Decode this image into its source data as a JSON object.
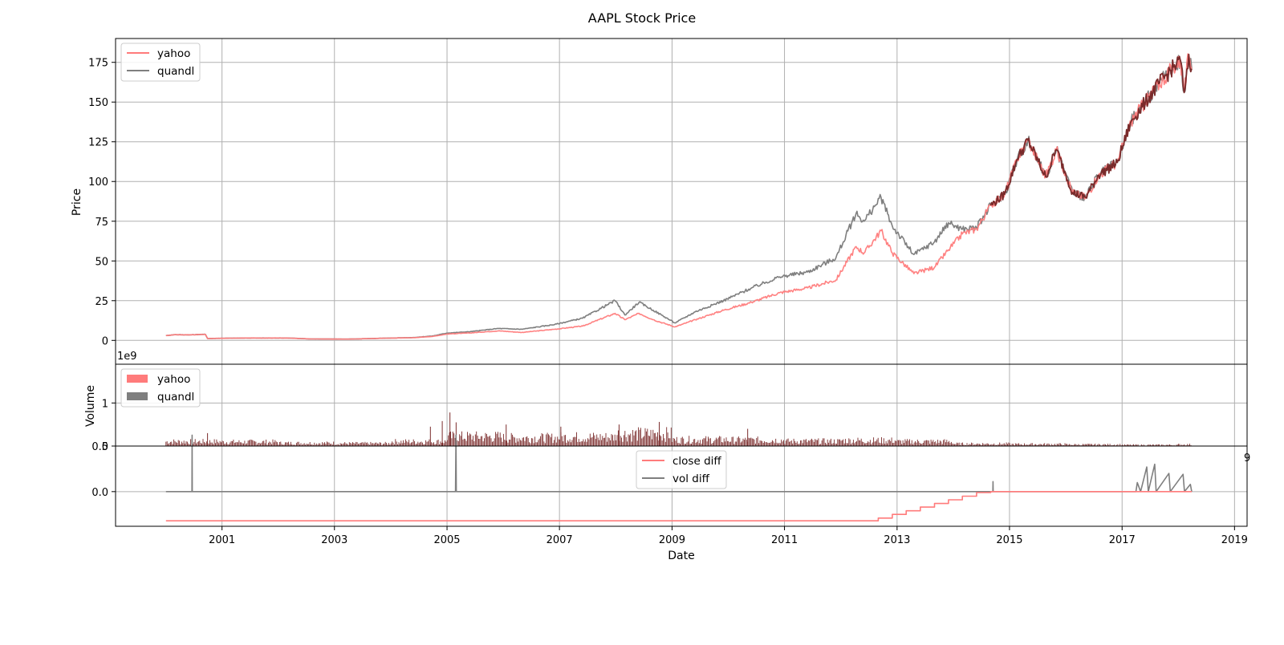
{
  "chart_data": {
    "type": "line",
    "title": "AAPL Stock Price",
    "xlabel": "Date",
    "x_ticks": [
      "2001",
      "2003",
      "2005",
      "2007",
      "2009",
      "2011",
      "2013",
      "2015",
      "2017",
      "2019"
    ],
    "colors": {
      "yahoo": "#ff7b7b",
      "quandl": "#7f7f7f",
      "overlap": "#7a2b2b",
      "grid": "#b0b0b0"
    },
    "panels": [
      {
        "id": "price",
        "type": "line",
        "ylabel": "Price",
        "ylim": [
          -15,
          190
        ],
        "yticks": [
          0,
          25,
          50,
          75,
          100,
          125,
          150,
          175
        ],
        "legend": "top-left",
        "grid": true,
        "series": [
          {
            "name": "yahoo",
            "color": "#ff7b7b",
            "points": [
              [
                "2000-01-03",
                3
              ],
              [
                "2000-03-01",
                3.6
              ],
              [
                "2000-06-01",
                3.5
              ],
              [
                "2000-09-15",
                3.8
              ],
              [
                "2000-09-29",
                1.2
              ],
              [
                "2001-06-01",
                1.5
              ],
              [
                "2002-03-01",
                1.5
              ],
              [
                "2002-08-01",
                0.9
              ],
              [
                "2003-04-01",
                0.8
              ],
              [
                "2003-12-01",
                1.4
              ],
              [
                "2004-06-01",
                1.7
              ],
              [
                "2004-10-01",
                2.5
              ],
              [
                "2005-01-01",
                4
              ],
              [
                "2005-06-01",
                4.7
              ],
              [
                "2005-12-01",
                6
              ],
              [
                "2006-05-01",
                5
              ],
              [
                "2006-12-01",
                7
              ],
              [
                "2007-06-01",
                9
              ],
              [
                "2007-12-28",
                17
              ],
              [
                "2008-03-01",
                13
              ],
              [
                "2008-06-01",
                17
              ],
              [
                "2008-09-01",
                13
              ],
              [
                "2009-01-20",
                8.5
              ],
              [
                "2009-06-01",
                13
              ],
              [
                "2009-12-01",
                19
              ],
              [
                "2010-06-01",
                24
              ],
              [
                "2010-12-01",
                30
              ],
              [
                "2011-06-01",
                33
              ],
              [
                "2011-12-01",
                38
              ],
              [
                "2012-04-10",
                59
              ],
              [
                "2012-06-01",
                55
              ],
              [
                "2012-09-19",
                69
              ],
              [
                "2012-12-01",
                55
              ],
              [
                "2013-04-20",
                42
              ],
              [
                "2013-09-01",
                46
              ],
              [
                "2013-12-01",
                57
              ],
              [
                "2014-03-01",
                67
              ],
              [
                "2014-06-01",
                70
              ],
              [
                "2014-09-01",
                85
              ],
              [
                "2014-12-01",
                92
              ],
              [
                "2015-02-20",
                114
              ],
              [
                "2015-05-01",
                126
              ],
              [
                "2015-08-24",
                103
              ],
              [
                "2015-11-01",
                120
              ],
              [
                "2016-01-01",
                105
              ],
              [
                "2016-02-15",
                93
              ],
              [
                "2016-05-10",
                90
              ],
              [
                "2016-08-01",
                104
              ],
              [
                "2016-12-01",
                112
              ],
              [
                "2017-03-01",
                138
              ],
              [
                "2017-06-01",
                150
              ],
              [
                "2017-09-01",
                162
              ],
              [
                "2017-12-01",
                172
              ],
              [
                "2018-01-15",
                176
              ],
              [
                "2018-02-08",
                156
              ],
              [
                "2018-03-10",
                180
              ],
              [
                "2018-03-29",
                171
              ]
            ]
          },
          {
            "name": "quandl",
            "color": "#7f7f7f",
            "points": [
              [
                "2000-01-03",
                3
              ],
              [
                "2000-03-01",
                3.6
              ],
              [
                "2000-06-01",
                3.5
              ],
              [
                "2000-09-15",
                3.8
              ],
              [
                "2000-09-29",
                1.2
              ],
              [
                "2001-06-01",
                1.5
              ],
              [
                "2002-03-01",
                1.5
              ],
              [
                "2002-08-01",
                0.9
              ],
              [
                "2003-04-01",
                0.8
              ],
              [
                "2003-12-01",
                1.4
              ],
              [
                "2004-06-01",
                1.8
              ],
              [
                "2004-10-01",
                2.8
              ],
              [
                "2005-01-01",
                4.6
              ],
              [
                "2005-06-01",
                5.5
              ],
              [
                "2005-12-01",
                7.5
              ],
              [
                "2006-05-01",
                7
              ],
              [
                "2006-12-01",
                10
              ],
              [
                "2007-06-01",
                14
              ],
              [
                "2007-12-28",
                25
              ],
              [
                "2008-03-01",
                16
              ],
              [
                "2008-06-01",
                24
              ],
              [
                "2008-09-01",
                19
              ],
              [
                "2009-01-20",
                11
              ],
              [
                "2009-06-01",
                18
              ],
              [
                "2009-12-01",
                25
              ],
              [
                "2010-06-01",
                33
              ],
              [
                "2010-12-01",
                40
              ],
              [
                "2011-06-01",
                43
              ],
              [
                "2011-12-01",
                52
              ],
              [
                "2012-04-10",
                80
              ],
              [
                "2012-06-01",
                75
              ],
              [
                "2012-09-19",
                90
              ],
              [
                "2012-12-01",
                72
              ],
              [
                "2013-04-20",
                54
              ],
              [
                "2013-09-01",
                62
              ],
              [
                "2013-12-01",
                74
              ],
              [
                "2014-03-01",
                70
              ],
              [
                "2014-06-01",
                71
              ],
              [
                "2014-09-01",
                85
              ],
              [
                "2014-12-01",
                92
              ],
              [
                "2015-02-20",
                114
              ],
              [
                "2015-05-01",
                126
              ],
              [
                "2015-08-24",
                103
              ],
              [
                "2015-11-01",
                120
              ],
              [
                "2016-01-01",
                105
              ],
              [
                "2016-02-15",
                93
              ],
              [
                "2016-05-10",
                90
              ],
              [
                "2016-08-01",
                104
              ],
              [
                "2016-12-01",
                112
              ],
              [
                "2017-03-01",
                138
              ],
              [
                "2017-06-01",
                150
              ],
              [
                "2017-09-01",
                162
              ],
              [
                "2017-12-01",
                172
              ],
              [
                "2018-01-15",
                176
              ],
              [
                "2018-02-08",
                156
              ],
              [
                "2018-03-10",
                180
              ],
              [
                "2018-03-29",
                171
              ]
            ]
          }
        ]
      },
      {
        "id": "volume",
        "type": "bar",
        "ylabel": "Volume",
        "offset_text": "1e9",
        "ylim": [
          0,
          1.9
        ],
        "yticks": [
          0,
          1
        ],
        "legend": "top-left",
        "grid": true,
        "series": [
          {
            "name": "yahoo",
            "color": "#ff7b7b"
          },
          {
            "name": "quandl",
            "color": "#7f7f7f"
          }
        ],
        "volume_level_by_year": [
          [
            "2000",
            0.12
          ],
          [
            "2001",
            0.11
          ],
          [
            "2002",
            0.08
          ],
          [
            "2003",
            0.07
          ],
          [
            "2004",
            0.12
          ],
          [
            "2005",
            0.25
          ],
          [
            "2006",
            0.22
          ],
          [
            "2007",
            0.24
          ],
          [
            "2008",
            0.32
          ],
          [
            "2009",
            0.17
          ],
          [
            "2010",
            0.16
          ],
          [
            "2011",
            0.13
          ],
          [
            "2012",
            0.15
          ],
          [
            "2013",
            0.12
          ],
          [
            "2014",
            0.06
          ],
          [
            "2015",
            0.05
          ],
          [
            "2016",
            0.04
          ],
          [
            "2017",
            0.03
          ],
          [
            "2018",
            0.04
          ]
        ],
        "volume_spikes": [
          [
            "2000-09-29",
            0.3
          ],
          [
            "2004-09-15",
            0.45
          ],
          [
            "2004-12-01",
            0.58
          ],
          [
            "2005-01-20",
            0.78
          ],
          [
            "2005-03-01",
            0.55
          ],
          [
            "2006-01-20",
            0.5
          ],
          [
            "2007-01-10",
            0.45
          ],
          [
            "2008-01-23",
            0.5
          ],
          [
            "2008-10-10",
            0.56
          ],
          [
            "2010-05-07",
            0.4
          ]
        ]
      },
      {
        "id": "diff",
        "type": "line",
        "ylim": [
          -0.38,
          0.5
        ],
        "yticks": [
          0.0,
          0.5
        ],
        "tick_labels": [
          "0.0",
          "0.5"
        ],
        "corner_text": "9",
        "legend": "top-center",
        "grid": true,
        "series": [
          {
            "name": "close diff",
            "color": "#ff7b7b",
            "points": [
              [
                "2000-01-03",
                -0.32
              ],
              [
                "2012-09-01",
                -0.32
              ],
              [
                "2012-09-01",
                -0.29
              ],
              [
                "2012-12-01",
                -0.29
              ],
              [
                "2012-12-01",
                -0.25
              ],
              [
                "2013-03-01",
                -0.25
              ],
              [
                "2013-03-01",
                -0.21
              ],
              [
                "2013-06-01",
                -0.21
              ],
              [
                "2013-06-01",
                -0.17
              ],
              [
                "2013-09-01",
                -0.17
              ],
              [
                "2013-09-01",
                -0.13
              ],
              [
                "2013-12-01",
                -0.13
              ],
              [
                "2013-12-01",
                -0.09
              ],
              [
                "2014-03-01",
                -0.09
              ],
              [
                "2014-03-01",
                -0.05
              ],
              [
                "2014-06-01",
                -0.05
              ],
              [
                "2014-06-01",
                -0.01
              ],
              [
                "2014-09-01",
                -0.01
              ],
              [
                "2014-09-01",
                0.0
              ],
              [
                "2018-03-29",
                0.0
              ]
            ]
          },
          {
            "name": "vol diff",
            "color": "#7f7f7f",
            "points": [
              [
                "2000-01-03",
                0.0
              ],
              [
                "2000-06-20",
                0.0
              ],
              [
                "2000-06-21",
                0.62
              ],
              [
                "2000-06-22",
                0.0
              ],
              [
                "2005-02-25",
                0.0
              ],
              [
                "2005-02-28",
                0.62
              ],
              [
                "2005-03-02",
                0.0
              ],
              [
                "2014-09-15",
                0.0
              ],
              [
                "2014-09-16",
                0.11
              ],
              [
                "2014-09-17",
                0.0
              ],
              [
                "2017-04-01",
                0.0
              ],
              [
                "2017-04-10",
                0.1
              ],
              [
                "2017-05-01",
                0.0
              ],
              [
                "2017-06-10",
                0.27
              ],
              [
                "2017-06-20",
                0.0
              ],
              [
                "2017-08-01",
                0.3
              ],
              [
                "2017-08-10",
                0.0
              ],
              [
                "2017-11-01",
                0.2
              ],
              [
                "2017-11-10",
                0.0
              ],
              [
                "2018-02-01",
                0.19
              ],
              [
                "2018-02-10",
                0.0
              ],
              [
                "2018-03-20",
                0.08
              ],
              [
                "2018-03-29",
                0.0
              ]
            ]
          }
        ]
      }
    ]
  }
}
